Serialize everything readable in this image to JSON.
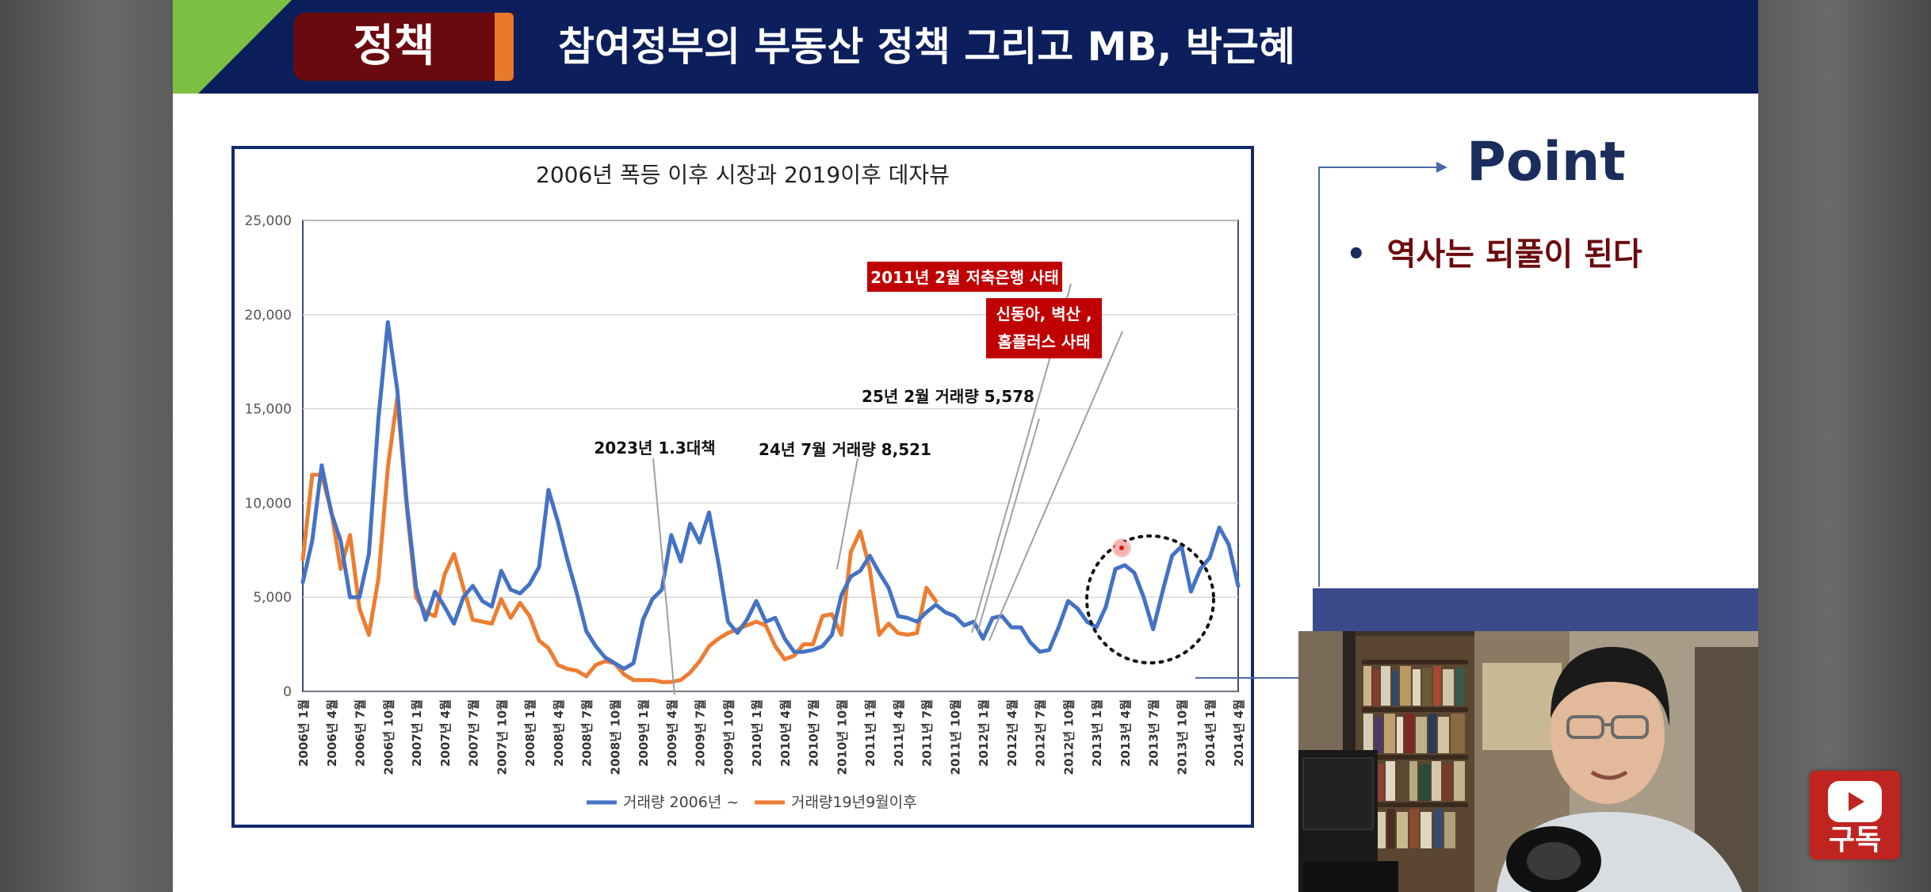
{
  "header": {
    "tag": "정책",
    "title": "참여정부의 부동산 정책 그리고 MB, 박근혜"
  },
  "point": {
    "title": "Point",
    "bullets": [
      "역사는 되풀이 된다"
    ]
  },
  "subscribe": {
    "label": "구독"
  },
  "colors": {
    "header_bg": "#0c1f5c",
    "tag_bg": "#6b0a0e",
    "tag_accent": "#e8782a",
    "triangle": "#7bc043",
    "series_2006": "#4472c4",
    "series_2019": "#ed7d31",
    "annotation_bg": "#c00000"
  },
  "chart_data": {
    "type": "line",
    "title": "2006년 폭등 이후 시장과  2019이후 데자뷰",
    "ylim": [
      0,
      25000
    ],
    "y_ticks": [
      "0",
      "5,000",
      "10,000",
      "15,000",
      "20,000",
      "25,000"
    ],
    "x_tick_labels": [
      "2006년 1월",
      "2006년 4월",
      "2006년 7월",
      "2006년 10월",
      "2007년 1월",
      "2007년 4월",
      "2007년 7월",
      "2007년 10월",
      "2008년 1월",
      "2008년 4월",
      "2008년 7월",
      "2008년 10월",
      "2009년 1월",
      "2009년 4월",
      "2009년 7월",
      "2009년 10월",
      "2010년 1월",
      "2010년 4월",
      "2010년 7월",
      "2010년 10월",
      "2011년 1월",
      "2011년 4월",
      "2011년 7월",
      "2011년 10월",
      "2012년 1월",
      "2012년 4월",
      "2012년 7월",
      "2012년 10월",
      "2013년 1월",
      "2013년 4월",
      "2013년 7월",
      "2013년 10월",
      "2014년 1월",
      "2014년 4월"
    ],
    "series": [
      {
        "name": "거래량 2006년 ~",
        "values": [
          5800,
          8000,
          12000,
          9500,
          8000,
          5000,
          5000,
          7300,
          14500,
          19600,
          16000,
          10000,
          5500,
          3800,
          5300,
          4500,
          3600,
          5000,
          5600,
          4800,
          4500,
          6400,
          5400,
          5200,
          5700,
          6600,
          10700,
          9000,
          7000,
          5200,
          3200,
          2400,
          1800,
          1500,
          1200,
          1500,
          3800,
          4900,
          5400,
          8300,
          6900,
          8900,
          7900,
          9500,
          6800,
          3700,
          3100,
          3800,
          4800,
          3700,
          3900,
          2800,
          2100,
          2100,
          2200,
          2400,
          3000,
          5100,
          6100,
          6400,
          7200,
          6300,
          5500,
          4000,
          3900,
          3700,
          4200,
          4600,
          4200,
          4000,
          3500,
          3700,
          2800,
          3900,
          4000,
          3400,
          3400,
          2600,
          2100,
          2200,
          3400,
          4800,
          4400,
          3700,
          3400,
          4500,
          6500,
          6700,
          6300,
          5000,
          3300,
          5300,
          7200,
          7700,
          5300,
          6500,
          7100,
          8700,
          7800,
          5600
        ]
      },
      {
        "name": "거래량19년9월이후",
        "values": [
          7000,
          11500,
          11500,
          9600,
          6500,
          8300,
          4400,
          3000,
          6000,
          11900,
          15600,
          9800,
          5000,
          4200,
          4000,
          6200,
          7300,
          5500,
          3800,
          3700,
          3600,
          4900,
          3900,
          4700,
          4000,
          2700,
          2300,
          1400,
          1200,
          1100,
          800,
          1400,
          1600,
          1500,
          900,
          600,
          600,
          600,
          500,
          500,
          600,
          1000,
          1600,
          2400,
          2800,
          3100,
          3300,
          3500,
          3700,
          3500,
          2400,
          1700,
          1900,
          2500,
          2500,
          4000,
          4100,
          3000,
          7400,
          8500,
          6500,
          3000,
          3600,
          3100,
          3000,
          3100,
          5500,
          4800
        ]
      }
    ],
    "annotations": [
      {
        "text": "2023년 1.3대책",
        "style": "plain"
      },
      {
        "text": "24년 7월 거래량 8,521",
        "style": "plain"
      },
      {
        "text": "25년 2월 거래량 5,578",
        "style": "plain"
      },
      {
        "text": "2011년 2월 저축은행 사태",
        "style": "box"
      },
      {
        "text": "신동아, 벽산 ,",
        "style": "box"
      },
      {
        "text": "홈플러스 사태",
        "style": "box"
      }
    ],
    "legend": "bottom",
    "grid": true
  }
}
